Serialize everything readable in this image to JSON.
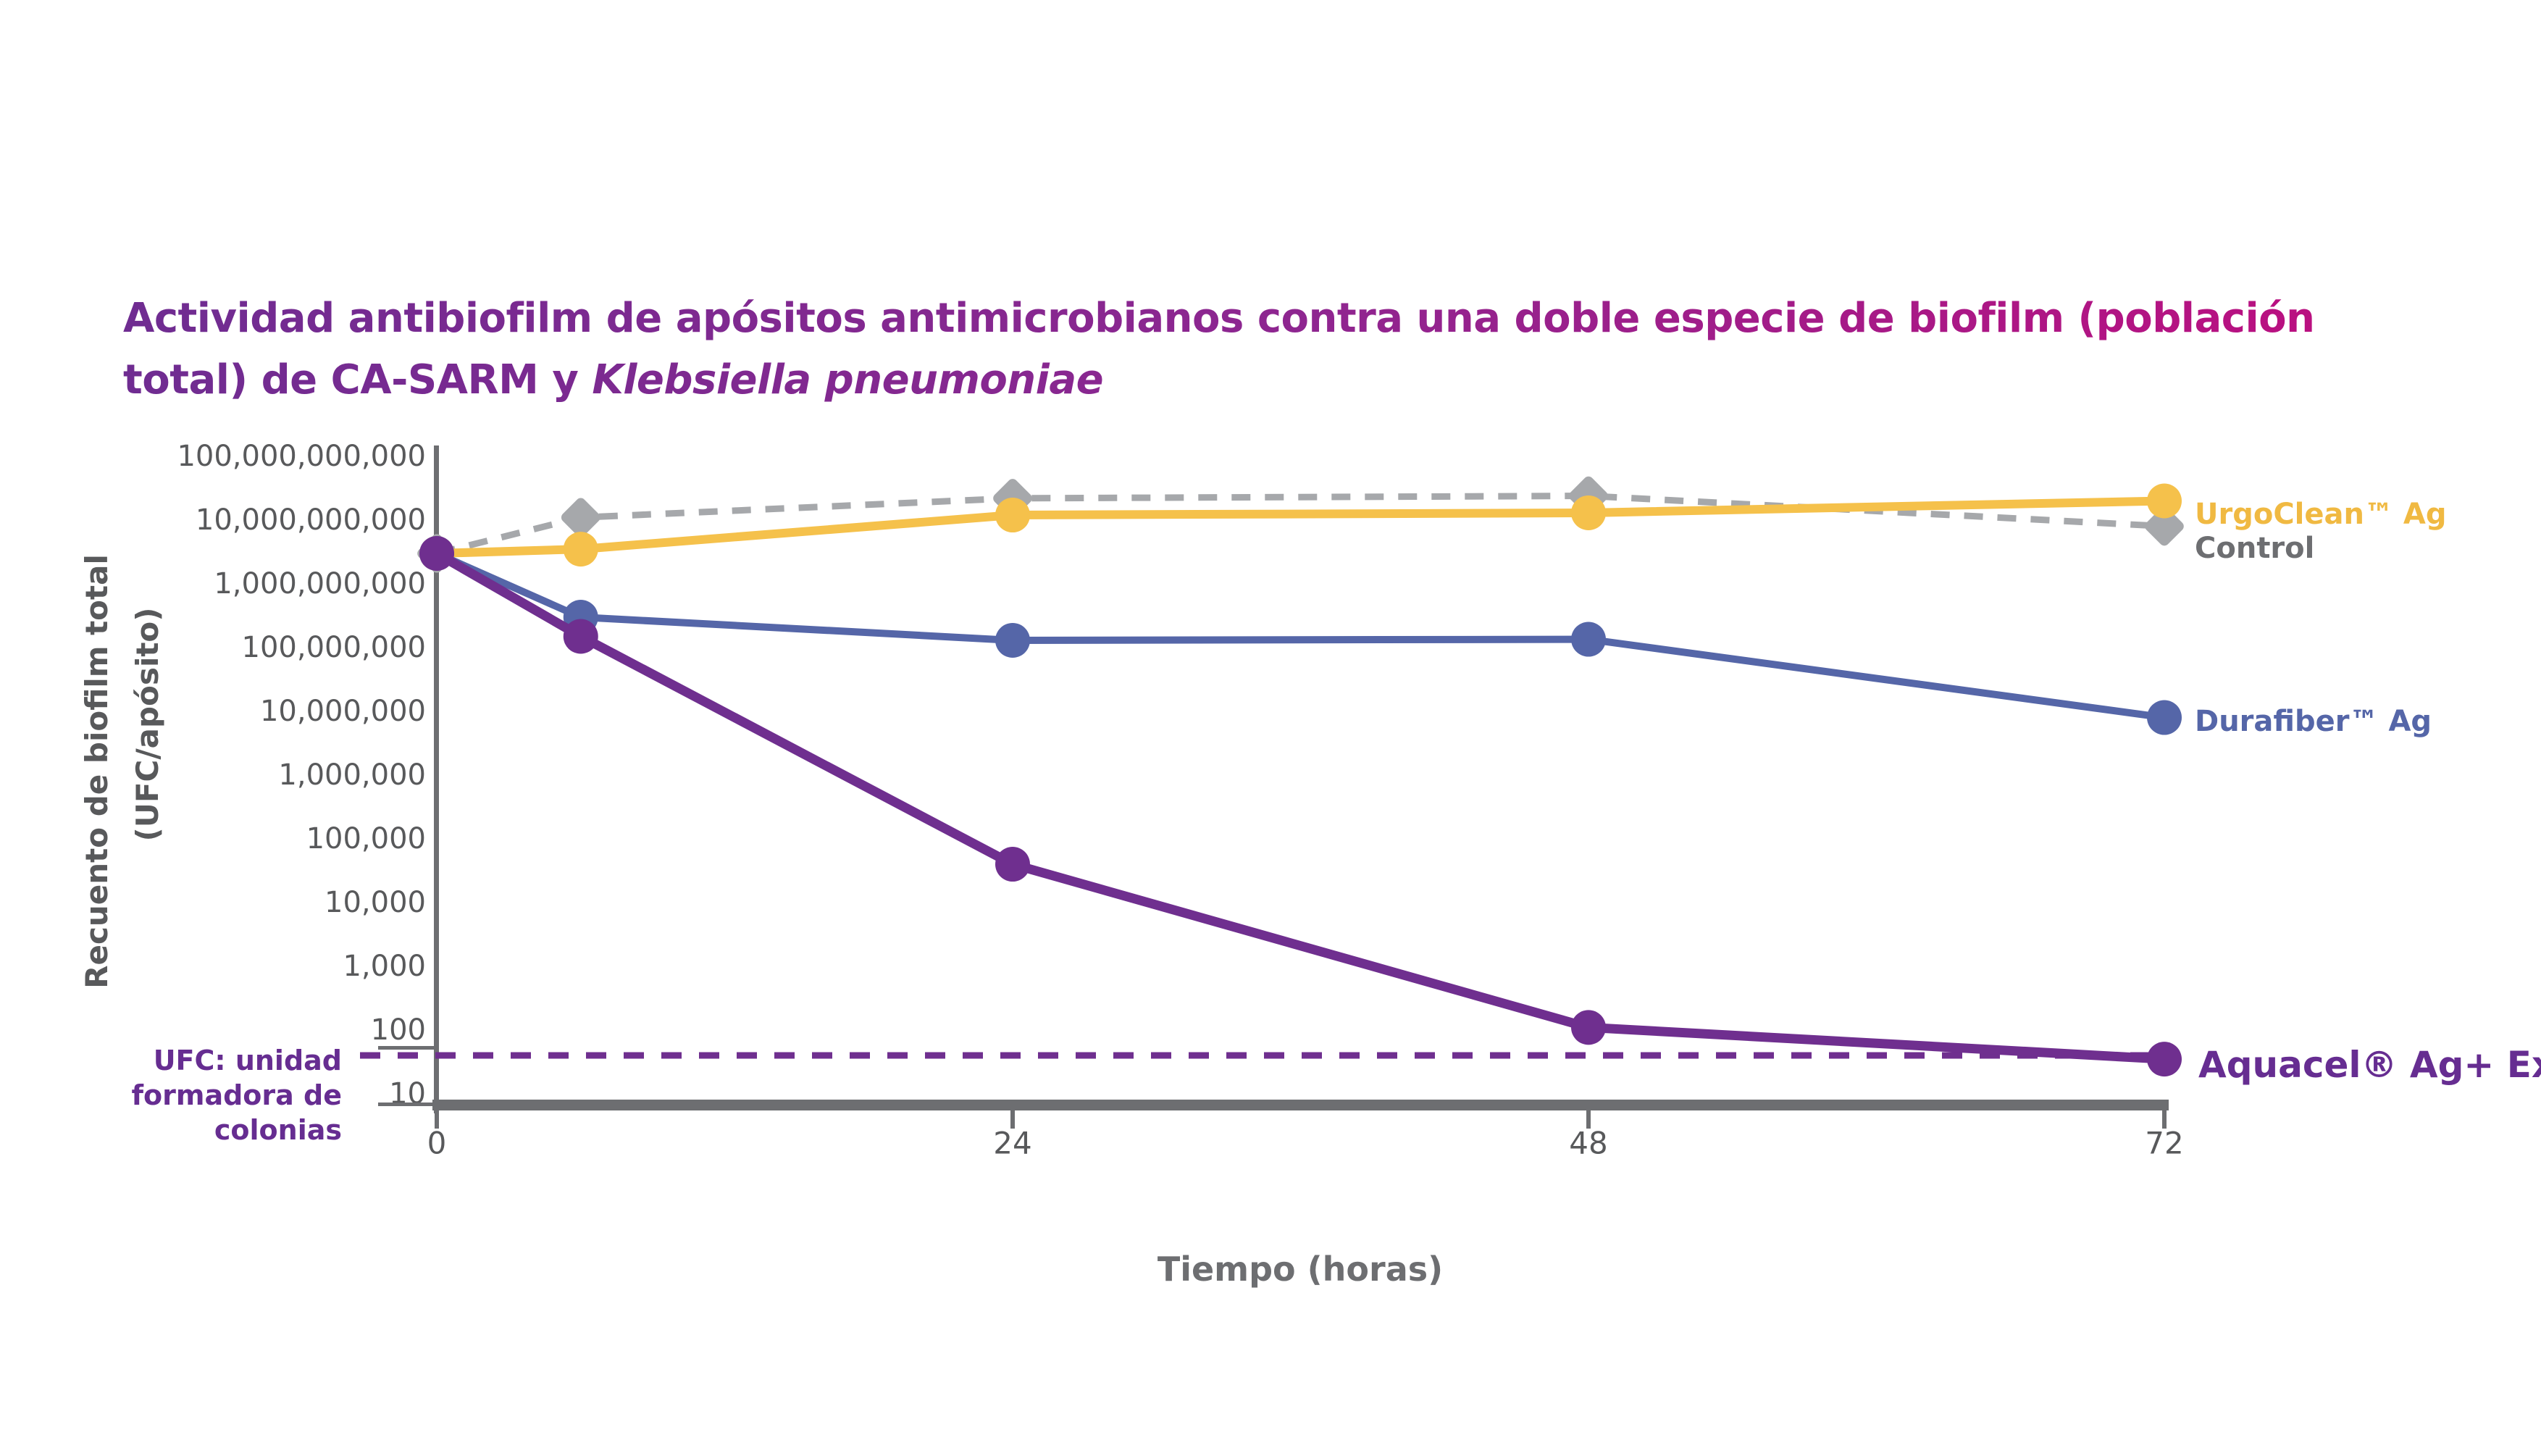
{
  "title": {
    "line1": "Actividad antibiofilm de apósitos antimicrobianos contra una doble especie de biofilm (población",
    "line2_normal": "total) de CA-SARM y ",
    "line2_italic": "Klebsiella pneumoniae",
    "gradient_start": "#6F2C91",
    "gradient_mid": "#8E2690",
    "gradient_end": "#C00D7E"
  },
  "chart_data": {
    "type": "line",
    "title": "Actividad antibiofilm de apósitos antimicrobianos contra una doble especie de biofilm (población total) de CA-SARM y Klebsiella pneumoniae",
    "xlabel": "Tiempo (horas)",
    "ylabel_line1": "Recuento de biofilm total",
    "ylabel_line2": "(UFC/apósito)",
    "y_scale": "log10",
    "ylim": [
      10,
      100000000000
    ],
    "y_tick_values": [
      100000000000,
      10000000000,
      1000000000,
      100000000,
      10000000,
      1000000,
      100000,
      10000,
      1000,
      100,
      10
    ],
    "y_tick_labels": [
      "100,000,000,000",
      "10,000,000,000",
      "1,000,000,000",
      "100,000,000",
      "10,000,000",
      "1,000,000",
      "100,000",
      "10,000",
      "1,000",
      "100",
      "10"
    ],
    "x_ticks": [
      0,
      24,
      48,
      72
    ],
    "x_tick_labels": [
      "0",
      "24",
      "48",
      "72"
    ],
    "xlim": [
      0,
      72
    ],
    "grid": "off",
    "legend_position": "right-of-lines",
    "detection_limit_line": {
      "value": 40,
      "style": "dashed",
      "color": "#6F2F8F"
    },
    "times": [
      0,
      6,
      24,
      48,
      72
    ],
    "series": [
      {
        "name": "Control",
        "label_color": "#6D6E71",
        "line_color": "#A6A8AB",
        "line_style": "dashed",
        "marker": "diamond",
        "line_width": 9,
        "label_font_size": 40,
        "label_y": 757,
        "values": [
          3000000000,
          11000000000,
          22000000000,
          24000000000,
          8000000000
        ]
      },
      {
        "name": "UrgoClean™ Ag",
        "label_color": "#F0B942",
        "line_color": "#F5C14B",
        "line_style": "solid",
        "marker": "circle",
        "line_width": 12,
        "label_font_size": 40,
        "label_y": 710,
        "values": [
          3000000000,
          3500000000,
          12000000000,
          13000000000,
          20000000000
        ]
      },
      {
        "name": "Durafiber™ Ag",
        "label_color": "#5566A8",
        "line_color": "#5566A8",
        "line_style": "solid",
        "marker": "circle",
        "line_width": 10,
        "label_font_size": 40,
        "label_y": 996,
        "values": [
          3000000000,
          300000000,
          130000000,
          135000000,
          8000000
        ]
      },
      {
        "name": "Aquacel® Ag+ Extra™",
        "label_color": "#662D91",
        "line_color": "#6F2F8F",
        "line_style": "solid",
        "marker": "circle",
        "line_width": 13,
        "label_font_size": 50,
        "label_y": 1470,
        "values": [
          3000000000,
          150000000,
          40000,
          110,
          35
        ]
      }
    ],
    "footnote": {
      "color": "#662D91",
      "lines": [
        "UFC: unidad",
        "formadora de",
        "colonias"
      ]
    },
    "axis_color": "#6D6E71",
    "tick_label_color": "#58595B"
  }
}
